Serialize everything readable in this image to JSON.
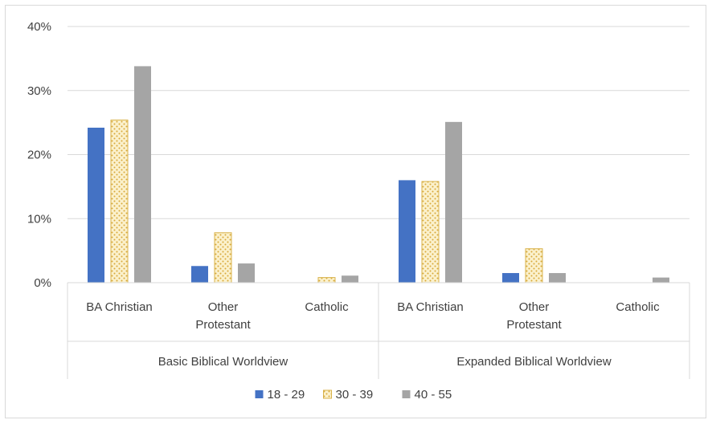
{
  "chart_data": {
    "type": "bar",
    "title": "",
    "xlabel": "",
    "ylabel": "",
    "ylim": [
      0,
      40
    ],
    "y_ticks": [
      "0%",
      "10%",
      "20%",
      "30%",
      "40%"
    ],
    "y_tick_values": [
      0,
      10,
      20,
      30,
      40
    ],
    "groups": [
      {
        "label": "Basic Biblical Worldview",
        "categories": [
          {
            "lines": [
              "BA Christian"
            ]
          },
          {
            "lines": [
              "Other",
              "Protestant"
            ]
          },
          {
            "lines": [
              "Catholic"
            ]
          }
        ]
      },
      {
        "label": "Expanded Biblical Worldview",
        "categories": [
          {
            "lines": [
              "BA Christian"
            ]
          },
          {
            "lines": [
              "Other",
              "Protestant"
            ]
          },
          {
            "lines": [
              "Catholic"
            ]
          }
        ]
      }
    ],
    "series": [
      {
        "name": "18 - 29",
        "color": "#4472c4",
        "pattern": "solid",
        "values": [
          24.2,
          2.6,
          0,
          16.0,
          1.5,
          0
        ]
      },
      {
        "name": "30 - 39",
        "color": "#f5e4a8",
        "pattern": "dots",
        "values": [
          25.4,
          7.8,
          0.8,
          15.8,
          5.3,
          0
        ]
      },
      {
        "name": "40 - 55",
        "color": "#a5a5a5",
        "pattern": "solid",
        "values": [
          33.8,
          3.0,
          1.1,
          25.1,
          1.5,
          0.8
        ]
      }
    ],
    "grid": true,
    "legend_position": "bottom"
  }
}
